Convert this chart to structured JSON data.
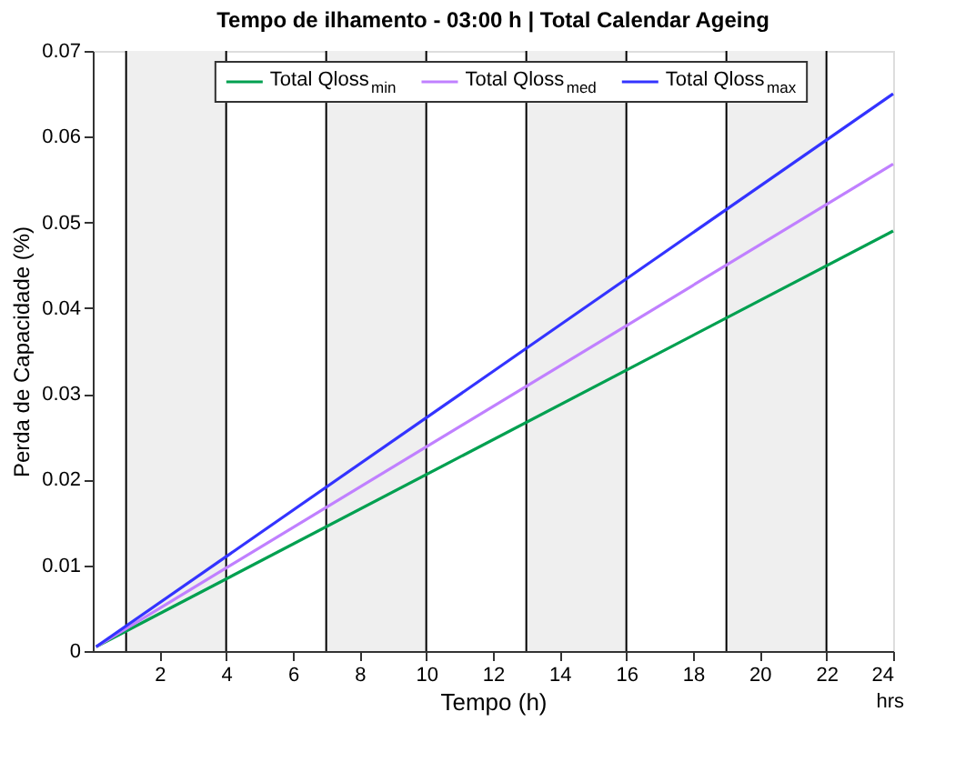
{
  "chart_data": {
    "type": "line",
    "title": "Tempo de ilhamento - 03:00 h | Total  Calendar Ageing",
    "xlabel": "Tempo (h)",
    "ylabel": "Perda de Capacidade (%)",
    "x": [
      0.1,
      24
    ],
    "series": [
      {
        "name": "Total Qloss$_{min}$",
        "color": "#00a050",
        "values": [
          0.0005,
          0.049
        ]
      },
      {
        "name": "Total Qloss$_{med}$",
        "color": "#c080ff",
        "values": [
          0.0005,
          0.0568
        ]
      },
      {
        "name": "Total Qloss$_{max}$",
        "color": "#3333ff",
        "values": [
          0.0005,
          0.065
        ]
      }
    ],
    "xlim": [
      0,
      24
    ],
    "xticks": [
      2,
      4,
      6,
      8,
      10,
      12,
      14,
      16,
      18,
      20,
      22,
      24
    ],
    "ylim": [
      0,
      0.07
    ],
    "yticks": [
      0,
      0.01,
      0.02,
      0.03,
      0.04,
      0.05,
      0.06,
      0.07
    ],
    "bands": [
      {
        "axis": "x",
        "from": 1,
        "to": 4,
        "color": "#efefef"
      },
      {
        "axis": "x",
        "from": 7,
        "to": 10,
        "color": "#efefef"
      },
      {
        "axis": "x",
        "from": 13,
        "to": 16,
        "color": "#efefef"
      },
      {
        "axis": "x",
        "from": 19,
        "to": 22,
        "color": "#efefef"
      }
    ],
    "ref_lines": [
      {
        "axis": "x",
        "value": 1,
        "color": "#000000"
      },
      {
        "axis": "x",
        "value": 4,
        "color": "#000000"
      },
      {
        "axis": "x",
        "value": 7,
        "color": "#000000"
      },
      {
        "axis": "x",
        "value": 10,
        "color": "#000000"
      },
      {
        "axis": "x",
        "value": 13,
        "color": "#000000"
      },
      {
        "axis": "x",
        "value": 16,
        "color": "#000000"
      },
      {
        "axis": "x",
        "value": 19,
        "color": "#000000"
      },
      {
        "axis": "x",
        "value": 22,
        "color": "#000000"
      }
    ],
    "annotations": [
      "hrs"
    ],
    "legend": "top",
    "grid": false,
    "marker": "none",
    "line_style": "solid"
  }
}
